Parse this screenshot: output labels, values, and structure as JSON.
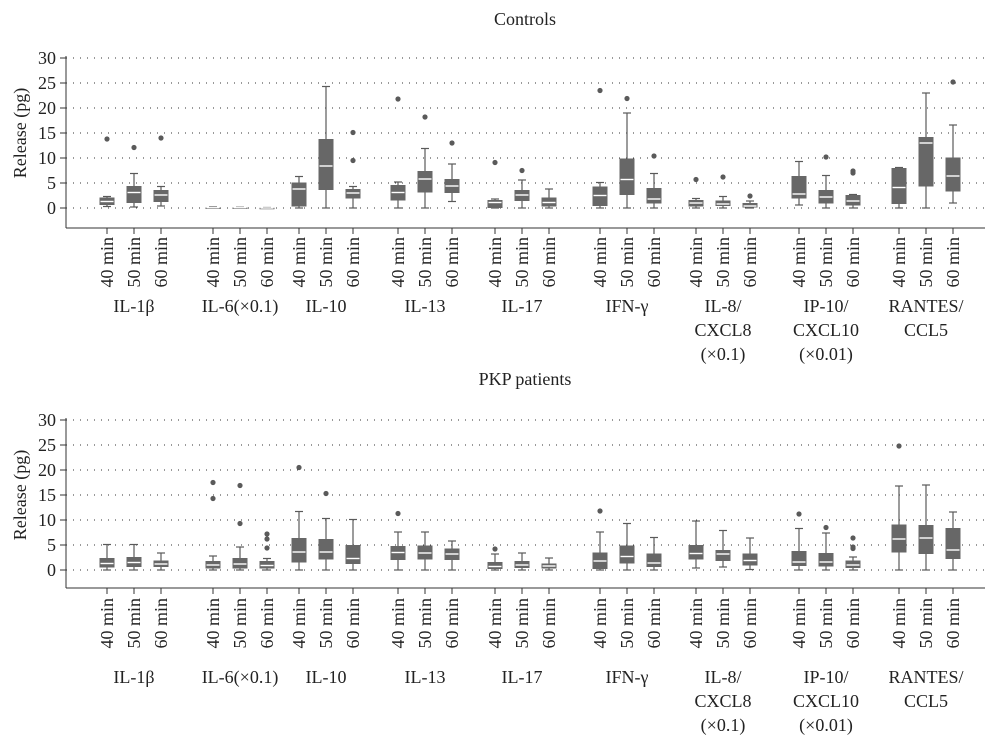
{
  "colors": {
    "box": "#676767",
    "median": "#ffffff",
    "whisker": "#5a5a5a",
    "outlier": "#5a5a5a",
    "axis": "#333333",
    "grid": "#333333"
  },
  "chart_data": [
    {
      "type": "box",
      "title": "Controls",
      "ylabel": "Release (pg)",
      "ylim": [
        0,
        30
      ],
      "yticks": [
        0,
        5,
        10,
        15,
        20,
        25,
        30
      ],
      "grid": "horizontal-dotted",
      "groups": [
        {
          "label_lines": [
            "IL-1β"
          ],
          "boxes": [
            {
              "time": "40 min",
              "min": 0.3,
              "q1": 0.6,
              "median": 1.3,
              "q3": 2.1,
              "max": 2.3,
              "outliers": [
                13.8
              ]
            },
            {
              "time": "50 min",
              "min": 0.2,
              "q1": 1.0,
              "median": 3.1,
              "q3": 4.4,
              "max": 6.9,
              "outliers": [
                12.1
              ]
            },
            {
              "time": "60 min",
              "min": 0.4,
              "q1": 1.2,
              "median": 2.6,
              "q3": 3.6,
              "max": 4.3,
              "outliers": [
                14.0
              ]
            }
          ]
        },
        {
          "label_lines": [
            "IL-6(×0.1)"
          ],
          "boxes": [
            {
              "time": "40 min",
              "min": 0.0,
              "q1": 0.0,
              "median": 0.05,
              "q3": 0.1,
              "max": 0.2,
              "outliers": []
            },
            {
              "time": "50 min",
              "min": 0.0,
              "q1": 0.0,
              "median": 0.05,
              "q3": 0.1,
              "max": 0.15,
              "outliers": []
            },
            {
              "time": "60 min",
              "min": 0.0,
              "q1": 0.0,
              "median": 0.0,
              "q3": 0.05,
              "max": 0.1,
              "outliers": []
            }
          ]
        },
        {
          "label_lines": [
            "IL-10"
          ],
          "boxes": [
            {
              "time": "40 min",
              "min": 0.0,
              "q1": 0.3,
              "median": 3.8,
              "q3": 5.1,
              "max": 6.3,
              "outliers": []
            },
            {
              "time": "50 min",
              "min": 0.0,
              "q1": 3.6,
              "median": 8.4,
              "q3": 13.8,
              "max": 24.3,
              "outliers": []
            },
            {
              "time": "60 min",
              "min": 0.0,
              "q1": 1.9,
              "median": 3.0,
              "q3": 3.8,
              "max": 4.3,
              "outliers": [
                9.5,
                15.1
              ]
            }
          ]
        },
        {
          "label_lines": [
            "IL-13"
          ],
          "boxes": [
            {
              "time": "40 min",
              "min": 0.0,
              "q1": 1.5,
              "median": 3.1,
              "q3": 4.6,
              "max": 5.2,
              "outliers": [
                21.8
              ]
            },
            {
              "time": "50 min",
              "min": 0.0,
              "q1": 3.1,
              "median": 5.8,
              "q3": 7.4,
              "max": 11.9,
              "outliers": [
                18.2
              ]
            },
            {
              "time": "60 min",
              "min": 1.3,
              "q1": 3.0,
              "median": 4.4,
              "q3": 5.8,
              "max": 8.8,
              "outliers": [
                13.0
              ]
            }
          ]
        },
        {
          "label_lines": [
            "IL-17"
          ],
          "boxes": [
            {
              "time": "40 min",
              "min": 0.0,
              "q1": 0.0,
              "median": 1.1,
              "q3": 1.6,
              "max": 1.8,
              "outliers": [
                9.1
              ]
            },
            {
              "time": "50 min",
              "min": 0.0,
              "q1": 1.4,
              "median": 2.6,
              "q3": 3.6,
              "max": 5.6,
              "outliers": [
                7.5
              ]
            },
            {
              "time": "60 min",
              "min": 0.0,
              "q1": 0.3,
              "median": 1.1,
              "q3": 2.1,
              "max": 3.8,
              "outliers": []
            }
          ]
        },
        {
          "label_lines": [
            "IFN-γ"
          ],
          "boxes": [
            {
              "time": "40 min",
              "min": 0.0,
              "q1": 0.4,
              "median": 2.5,
              "q3": 4.3,
              "max": 5.1,
              "outliers": [
                23.5
              ]
            },
            {
              "time": "50 min",
              "min": 0.0,
              "q1": 2.6,
              "median": 5.7,
              "q3": 9.9,
              "max": 19.0,
              "outliers": [
                21.9
              ]
            },
            {
              "time": "60 min",
              "min": 0.0,
              "q1": 0.9,
              "median": 1.8,
              "q3": 4.0,
              "max": 6.9,
              "outliers": [
                10.4
              ]
            }
          ]
        },
        {
          "label_lines": [
            "IL-8/",
            "CXCL8",
            "(×0.1)"
          ],
          "boxes": [
            {
              "time": "40 min",
              "min": 0.0,
              "q1": 0.3,
              "median": 1.0,
              "q3": 1.6,
              "max": 1.9,
              "outliers": [
                5.7
              ]
            },
            {
              "time": "50 min",
              "min": 0.0,
              "q1": 0.4,
              "median": 0.8,
              "q3": 1.5,
              "max": 2.3,
              "outliers": [
                6.2
              ]
            },
            {
              "time": "60 min",
              "min": 0.0,
              "q1": 0.1,
              "median": 0.4,
              "q3": 1.0,
              "max": 1.4,
              "outliers": [
                2.4
              ]
            }
          ]
        },
        {
          "label_lines": [
            "IP-10/",
            "CXCL10",
            "(×0.01)"
          ],
          "boxes": [
            {
              "time": "40 min",
              "min": 0.6,
              "q1": 1.9,
              "median": 2.8,
              "q3": 6.4,
              "max": 9.3,
              "outliers": []
            },
            {
              "time": "50 min",
              "min": 0.0,
              "q1": 0.9,
              "median": 2.2,
              "q3": 3.6,
              "max": 6.5,
              "outliers": [
                10.2
              ]
            },
            {
              "time": "60 min",
              "min": 0.0,
              "q1": 0.5,
              "median": 1.4,
              "q3": 2.6,
              "max": 2.7,
              "outliers": [
                7.0,
                7.4
              ]
            }
          ]
        },
        {
          "label_lines": [
            "RANTES/",
            "CCL5"
          ],
          "boxes": [
            {
              "time": "40 min",
              "min": 0.0,
              "q1": 0.8,
              "median": 4.1,
              "q3": 8.0,
              "max": 8.1,
              "outliers": []
            },
            {
              "time": "50 min",
              "min": 0.0,
              "q1": 4.3,
              "median": 13.0,
              "q3": 14.2,
              "max": 23.0,
              "outliers": []
            },
            {
              "time": "60 min",
              "min": 1.0,
              "q1": 3.3,
              "median": 6.4,
              "q3": 10.1,
              "max": 16.6,
              "outliers": [
                25.2
              ]
            }
          ]
        }
      ]
    },
    {
      "type": "box",
      "title": "PKP patients",
      "ylabel": "Release (pg)",
      "ylim": [
        0,
        30
      ],
      "yticks": [
        0,
        5,
        10,
        15,
        20,
        25,
        30
      ],
      "grid": "horizontal-dotted",
      "groups": [
        {
          "label_lines": [
            "IL-1β"
          ],
          "boxes": [
            {
              "time": "40 min",
              "min": 0.0,
              "q1": 0.5,
              "median": 1.3,
              "q3": 2.4,
              "max": 5.1,
              "outliers": []
            },
            {
              "time": "50 min",
              "min": 0.0,
              "q1": 0.6,
              "median": 1.5,
              "q3": 2.6,
              "max": 5.1,
              "outliers": []
            },
            {
              "time": "60 min",
              "min": 0.0,
              "q1": 0.6,
              "median": 1.2,
              "q3": 1.9,
              "max": 3.4,
              "outliers": []
            }
          ]
        },
        {
          "label_lines": [
            "IL-6(×0.1)"
          ],
          "boxes": [
            {
              "time": "40 min",
              "min": 0.0,
              "q1": 0.3,
              "median": 1.0,
              "q3": 1.8,
              "max": 2.8,
              "outliers": [
                14.3,
                17.5
              ]
            },
            {
              "time": "50 min",
              "min": 0.0,
              "q1": 0.3,
              "median": 1.2,
              "q3": 2.4,
              "max": 4.6,
              "outliers": [
                9.3,
                16.9
              ]
            },
            {
              "time": "60 min",
              "min": 0.0,
              "q1": 0.3,
              "median": 0.9,
              "q3": 1.8,
              "max": 2.3,
              "outliers": [
                4.4,
                6.2,
                7.2
              ]
            }
          ]
        },
        {
          "label_lines": [
            "IL-10"
          ],
          "boxes": [
            {
              "time": "40 min",
              "min": 0.0,
              "q1": 1.5,
              "median": 3.6,
              "q3": 6.4,
              "max": 11.7,
              "outliers": [
                20.5
              ]
            },
            {
              "time": "50 min",
              "min": 0.0,
              "q1": 2.1,
              "median": 3.6,
              "q3": 6.2,
              "max": 10.3,
              "outliers": [
                15.3
              ]
            },
            {
              "time": "60 min",
              "min": 0.0,
              "q1": 1.2,
              "median": 2.3,
              "q3": 5.0,
              "max": 10.1,
              "outliers": []
            }
          ]
        },
        {
          "label_lines": [
            "IL-13"
          ],
          "boxes": [
            {
              "time": "40 min",
              "min": 0.0,
              "q1": 2.0,
              "median": 3.5,
              "q3": 4.8,
              "max": 7.6,
              "outliers": [
                11.3
              ]
            },
            {
              "time": "50 min",
              "min": 0.0,
              "q1": 2.1,
              "median": 3.4,
              "q3": 4.9,
              "max": 7.6,
              "outliers": []
            },
            {
              "time": "60 min",
              "min": 0.0,
              "q1": 2.0,
              "median": 3.2,
              "q3": 4.3,
              "max": 5.8,
              "outliers": []
            }
          ]
        },
        {
          "label_lines": [
            "IL-17"
          ],
          "boxes": [
            {
              "time": "40 min",
              "min": 0.0,
              "q1": 0.2,
              "median": 0.7,
              "q3": 1.6,
              "max": 3.2,
              "outliers": [
                4.2
              ]
            },
            {
              "time": "50 min",
              "min": 0.0,
              "q1": 0.4,
              "median": 1.0,
              "q3": 1.8,
              "max": 3.4,
              "outliers": []
            },
            {
              "time": "60 min",
              "min": 0.0,
              "q1": 0.3,
              "median": 0.8,
              "q3": 1.3,
              "max": 2.4,
              "outliers": []
            }
          ]
        },
        {
          "label_lines": [
            "IFN-γ"
          ],
          "boxes": [
            {
              "time": "40 min",
              "min": 0.0,
              "q1": 0.2,
              "median": 1.8,
              "q3": 3.5,
              "max": 7.6,
              "outliers": [
                11.8
              ]
            },
            {
              "time": "50 min",
              "min": 0.0,
              "q1": 1.3,
              "median": 2.7,
              "q3": 4.9,
              "max": 9.3,
              "outliers": []
            },
            {
              "time": "60 min",
              "min": 0.0,
              "q1": 0.6,
              "median": 1.4,
              "q3": 3.3,
              "max": 6.5,
              "outliers": []
            }
          ]
        },
        {
          "label_lines": [
            "IL-8/",
            "CXCL8",
            "(×0.1)"
          ],
          "boxes": [
            {
              "time": "40 min",
              "min": 0.4,
              "q1": 2.1,
              "median": 3.3,
              "q3": 5.0,
              "max": 9.8,
              "outliers": []
            },
            {
              "time": "50 min",
              "min": 0.6,
              "q1": 1.8,
              "median": 3.2,
              "q3": 4.0,
              "max": 7.9,
              "outliers": []
            },
            {
              "time": "60 min",
              "min": 0.1,
              "q1": 0.9,
              "median": 1.9,
              "q3": 3.3,
              "max": 6.4,
              "outliers": []
            }
          ]
        },
        {
          "label_lines": [
            "IP-10/",
            "CXCL10",
            "(×0.01)"
          ],
          "boxes": [
            {
              "time": "40 min",
              "min": 0.0,
              "q1": 0.8,
              "median": 1.6,
              "q3": 3.8,
              "max": 8.3,
              "outliers": [
                11.2
              ]
            },
            {
              "time": "50 min",
              "min": 0.0,
              "q1": 0.7,
              "median": 1.6,
              "q3": 3.4,
              "max": 7.4,
              "outliers": [
                8.5
              ]
            },
            {
              "time": "60 min",
              "min": 0.0,
              "q1": 0.4,
              "median": 1.0,
              "q3": 1.9,
              "max": 2.6,
              "outliers": [
                4.3,
                4.6,
                6.4
              ]
            }
          ]
        },
        {
          "label_lines": [
            "RANTES/",
            "CCL5"
          ],
          "boxes": [
            {
              "time": "40 min",
              "min": 0.0,
              "q1": 3.5,
              "median": 6.2,
              "q3": 9.1,
              "max": 16.8,
              "outliers": [
                24.8
              ]
            },
            {
              "time": "50 min",
              "min": 0.0,
              "q1": 3.2,
              "median": 6.4,
              "q3": 9.0,
              "max": 17.0,
              "outliers": []
            },
            {
              "time": "60 min",
              "min": 0.0,
              "q1": 2.2,
              "median": 4.0,
              "q3": 8.4,
              "max": 11.6,
              "outliers": []
            }
          ]
        }
      ]
    }
  ]
}
